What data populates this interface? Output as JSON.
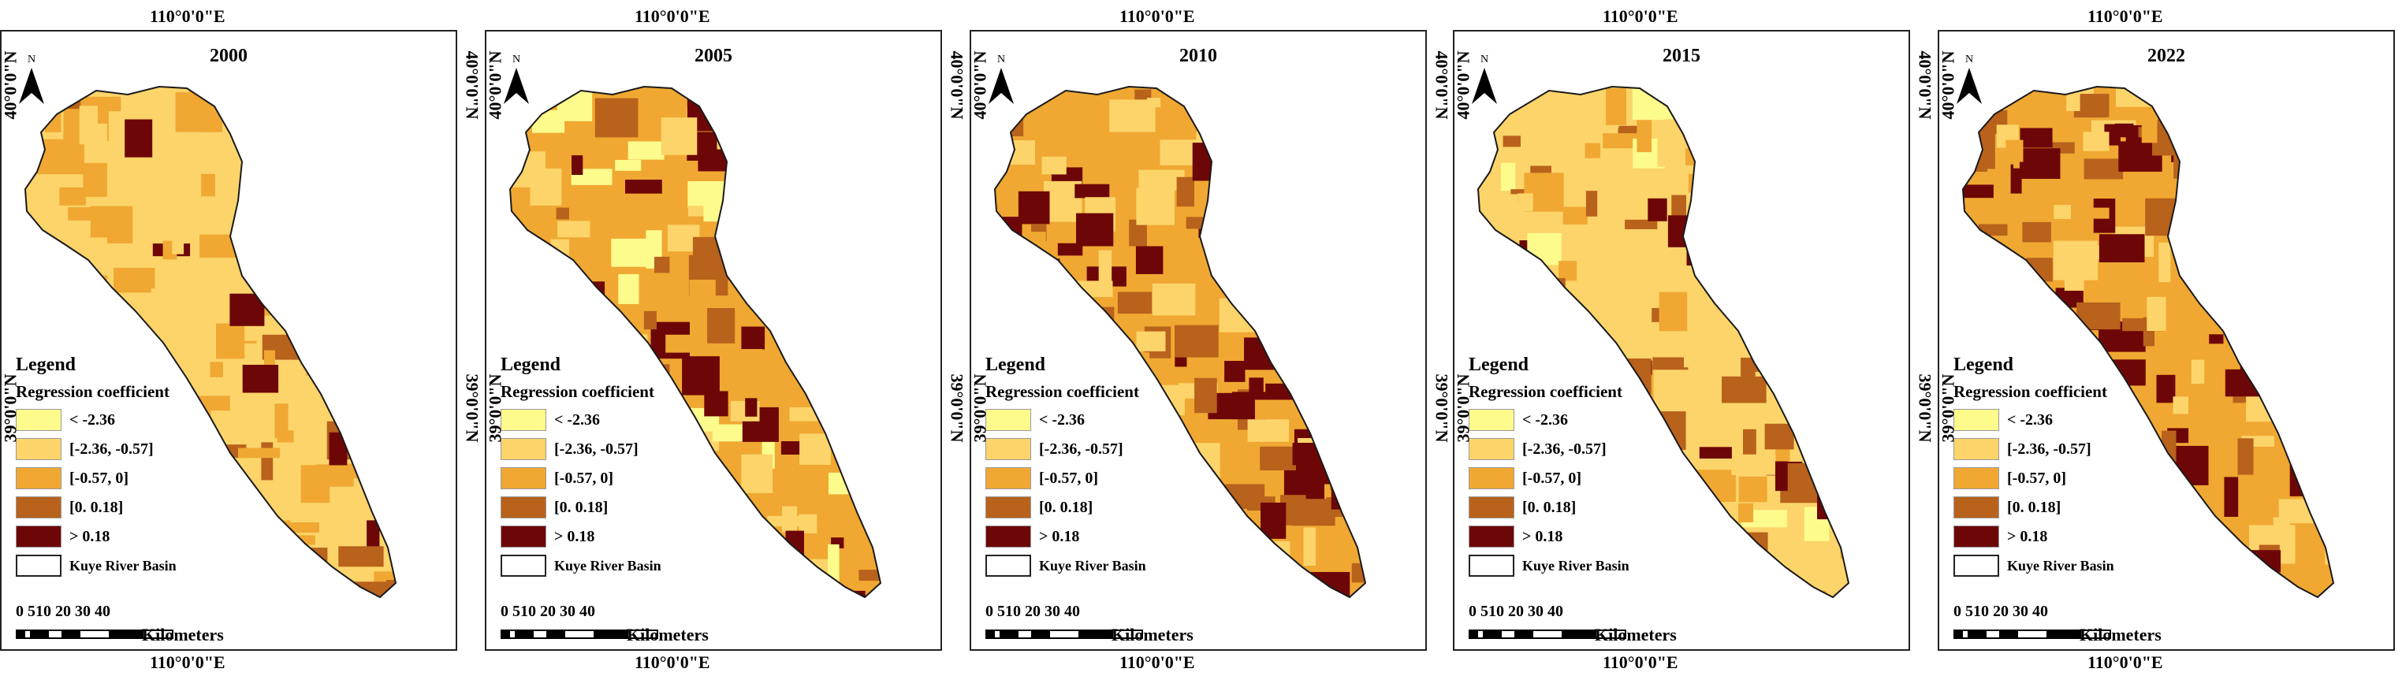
{
  "colors": {
    "class1": "#fefb8d",
    "class2": "#fcd46a",
    "class3": "#f0a832",
    "class4": "#b8621c",
    "class5": "#6d0707",
    "outline": "#1a1a1a"
  },
  "common": {
    "lon_label": "110°0'0\"E",
    "lat_north_label": "40°0'0\"N",
    "lat_mid_label": "39°0'0\"N",
    "north_label": "N",
    "legend_title": "Legend",
    "legend_subtitle": "Regression coefficient",
    "legend_items": [
      {
        "label": "< -2.36",
        "color_key": "class1"
      },
      {
        "label": "[-2.36, -0.57]",
        "color_key": "class2"
      },
      {
        "label": "[-0.57, 0]",
        "color_key": "class3"
      },
      {
        "label": "[0. 0.18]",
        "color_key": "class4"
      },
      {
        "label": "> 0.18",
        "color_key": "class5"
      }
    ],
    "basin_label": "Kuye River Basin",
    "scale_ticks": "0 510  20  30  40",
    "scale_units": "Kilometers"
  },
  "panels": [
    {
      "year": "2000",
      "dominant": "class2",
      "mix": [
        "class3",
        "class3",
        "class2",
        "class4",
        "class3",
        "class2",
        "class5",
        "class3"
      ]
    },
    {
      "year": "2005",
      "dominant": "class3",
      "mix": [
        "class1",
        "class2",
        "class5",
        "class4",
        "class3",
        "class2",
        "class5",
        "class1"
      ]
    },
    {
      "year": "2010",
      "dominant": "class3",
      "mix": [
        "class5",
        "class4",
        "class2",
        "class5",
        "class3",
        "class2",
        "class5",
        "class4"
      ]
    },
    {
      "year": "2015",
      "dominant": "class2",
      "mix": [
        "class4",
        "class3",
        "class1",
        "class5",
        "class2",
        "class3",
        "class4",
        "class2"
      ]
    },
    {
      "year": "2022",
      "dominant": "class3",
      "mix": [
        "class5",
        "class4",
        "class2",
        "class3",
        "class3",
        "class2",
        "class4",
        "class5"
      ]
    }
  ]
}
